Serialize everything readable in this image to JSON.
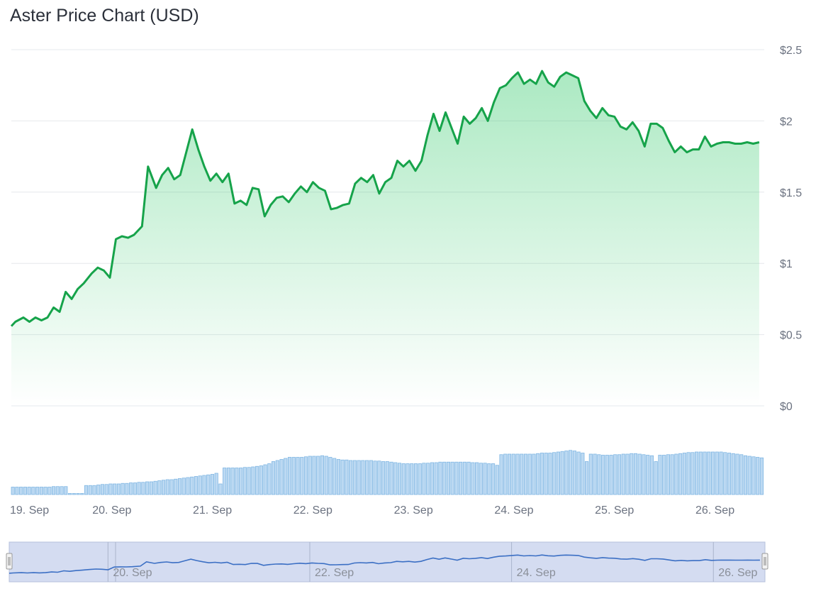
{
  "title": "Aster Price Chart (USD)",
  "chart_data": {
    "type": "line",
    "title": "Aster Price Chart (USD)",
    "ylim": [
      0,
      2.5
    ],
    "y_ticks": [
      {
        "value": 0,
        "label": "$0"
      },
      {
        "value": 0.5,
        "label": "$0.5"
      },
      {
        "value": 1,
        "label": "$1"
      },
      {
        "value": 1.5,
        "label": "$1.5"
      },
      {
        "value": 2,
        "label": "$2"
      },
      {
        "value": 2.5,
        "label": "$2.5"
      }
    ],
    "xlim": [
      0,
      7.49
    ],
    "x_ticks": [
      {
        "value": 0,
        "label": "19. Sep"
      },
      {
        "value": 1,
        "label": "20. Sep"
      },
      {
        "value": 2,
        "label": "21. Sep"
      },
      {
        "value": 3,
        "label": "22. Sep"
      },
      {
        "value": 4,
        "label": "23. Sep"
      },
      {
        "value": 5,
        "label": "24. Sep"
      },
      {
        "value": 6,
        "label": "25. Sep"
      },
      {
        "value": 7,
        "label": "26. Sep"
      }
    ],
    "grid": true,
    "line_color": "#16a34a",
    "area_color": "#22c55e",
    "volume_color": "#7fb6e3",
    "price_series": {
      "x": [
        0,
        0.04,
        0.12,
        0.18,
        0.24,
        0.3,
        0.36,
        0.42,
        0.48,
        0.54,
        0.6,
        0.66,
        0.72,
        0.8,
        0.86,
        0.92,
        0.98,
        1.04,
        1.1,
        1.16,
        1.22,
        1.3,
        1.36,
        1.44,
        1.5,
        1.56,
        1.62,
        1.68,
        1.74,
        1.8,
        1.86,
        1.92,
        1.98,
        2.04,
        2.1,
        2.16,
        2.22,
        2.28,
        2.34,
        2.4,
        2.46,
        2.52,
        2.58,
        2.64,
        2.7,
        2.76,
        2.82,
        2.88,
        2.94,
        3.0,
        3.06,
        3.12,
        3.18,
        3.24,
        3.3,
        3.36,
        3.42,
        3.48,
        3.54,
        3.6,
        3.66,
        3.72,
        3.78,
        3.84,
        3.9,
        3.96,
        4.02,
        4.08,
        4.14,
        4.2,
        4.26,
        4.32,
        4.38,
        4.44,
        4.5,
        4.56,
        4.62,
        4.68,
        4.74,
        4.8,
        4.86,
        4.92,
        4.98,
        5.04,
        5.1,
        5.16,
        5.22,
        5.28,
        5.34,
        5.4,
        5.46,
        5.52,
        5.58,
        5.64,
        5.7,
        5.76,
        5.82,
        5.88,
        5.94,
        6.0,
        6.06,
        6.12,
        6.18,
        6.24,
        6.3,
        6.36,
        6.42,
        6.48,
        6.54,
        6.6,
        6.66,
        6.72,
        6.78,
        6.84,
        6.9,
        6.96,
        7.02,
        7.08,
        7.14,
        7.2,
        7.26,
        7.32,
        7.38,
        7.44
      ],
      "values": [
        0.56,
        0.59,
        0.62,
        0.59,
        0.62,
        0.6,
        0.62,
        0.69,
        0.66,
        0.8,
        0.75,
        0.82,
        0.86,
        0.93,
        0.97,
        0.95,
        0.9,
        1.17,
        1.19,
        1.18,
        1.2,
        1.26,
        1.68,
        1.53,
        1.62,
        1.67,
        1.59,
        1.62,
        1.78,
        1.94,
        1.8,
        1.68,
        1.58,
        1.63,
        1.57,
        1.63,
        1.42,
        1.44,
        1.41,
        1.53,
        1.52,
        1.33,
        1.41,
        1.46,
        1.47,
        1.43,
        1.49,
        1.54,
        1.5,
        1.57,
        1.53,
        1.51,
        1.38,
        1.39,
        1.41,
        1.42,
        1.56,
        1.6,
        1.57,
        1.62,
        1.49,
        1.57,
        1.6,
        1.72,
        1.68,
        1.72,
        1.65,
        1.72,
        1.9,
        2.05,
        1.93,
        2.06,
        1.95,
        1.84,
        2.03,
        1.98,
        2.02,
        2.09,
        2.0,
        2.13,
        2.23,
        2.25,
        2.3,
        2.34,
        2.26,
        2.29,
        2.26,
        2.35,
        2.27,
        2.24,
        2.31,
        2.34,
        2.32,
        2.3,
        2.14,
        2.07,
        2.02,
        2.09,
        2.04,
        2.03,
        1.96,
        1.94,
        1.99,
        1.93,
        1.82,
        1.98,
        1.98,
        1.95,
        1.86,
        1.78,
        1.82,
        1.78,
        1.8,
        1.8,
        1.89,
        1.82,
        1.84,
        1.85,
        1.85,
        1.84,
        1.84,
        1.85,
        1.84,
        1.85
      ]
    },
    "volume_series": {
      "values": [
        0.14,
        0.14,
        0.14,
        0.14,
        0.14,
        0.14,
        0.14,
        0.14,
        0.14,
        0.14,
        0.15,
        0.15,
        0.15,
        0.15,
        0.02,
        0.02,
        0.02,
        0.02,
        0.17,
        0.17,
        0.17,
        0.18,
        0.19,
        0.19,
        0.2,
        0.2,
        0.2,
        0.21,
        0.21,
        0.22,
        0.22,
        0.23,
        0.23,
        0.24,
        0.24,
        0.25,
        0.26,
        0.27,
        0.28,
        0.28,
        0.29,
        0.3,
        0.31,
        0.32,
        0.33,
        0.34,
        0.35,
        0.36,
        0.37,
        0.38,
        0.4,
        0.2,
        0.5,
        0.5,
        0.5,
        0.5,
        0.5,
        0.51,
        0.51,
        0.52,
        0.53,
        0.54,
        0.56,
        0.58,
        0.62,
        0.64,
        0.66,
        0.68,
        0.7,
        0.7,
        0.7,
        0.7,
        0.71,
        0.72,
        0.72,
        0.72,
        0.73,
        0.72,
        0.7,
        0.68,
        0.66,
        0.65,
        0.65,
        0.64,
        0.64,
        0.64,
        0.64,
        0.64,
        0.64,
        0.63,
        0.63,
        0.62,
        0.62,
        0.61,
        0.6,
        0.59,
        0.58,
        0.58,
        0.58,
        0.58,
        0.58,
        0.59,
        0.59,
        0.6,
        0.6,
        0.61,
        0.61,
        0.61,
        0.61,
        0.61,
        0.61,
        0.61,
        0.61,
        0.6,
        0.6,
        0.59,
        0.59,
        0.58,
        0.58,
        0.55,
        0.75,
        0.76,
        0.76,
        0.76,
        0.76,
        0.76,
        0.76,
        0.76,
        0.76,
        0.77,
        0.78,
        0.78,
        0.78,
        0.79,
        0.8,
        0.81,
        0.82,
        0.83,
        0.82,
        0.8,
        0.78,
        0.62,
        0.76,
        0.76,
        0.75,
        0.74,
        0.74,
        0.74,
        0.75,
        0.75,
        0.76,
        0.76,
        0.77,
        0.77,
        0.76,
        0.75,
        0.74,
        0.73,
        0.62,
        0.74,
        0.74,
        0.75,
        0.75,
        0.76,
        0.77,
        0.78,
        0.79,
        0.79,
        0.8,
        0.8,
        0.8,
        0.8,
        0.8,
        0.8,
        0.8,
        0.79,
        0.78,
        0.77,
        0.76,
        0.75,
        0.73,
        0.72,
        0.71,
        0.7,
        0.69
      ]
    },
    "navigator": {
      "x_ticks": [
        {
          "value": 1,
          "label": "20. Sep"
        },
        {
          "value": 3,
          "label": "22. Sep"
        },
        {
          "value": 5,
          "label": "24. Sep"
        },
        {
          "value": 7,
          "label": "26. Sep"
        }
      ],
      "line_color": "#3b6fc4",
      "mask_color": "#cdd6ee"
    }
  }
}
